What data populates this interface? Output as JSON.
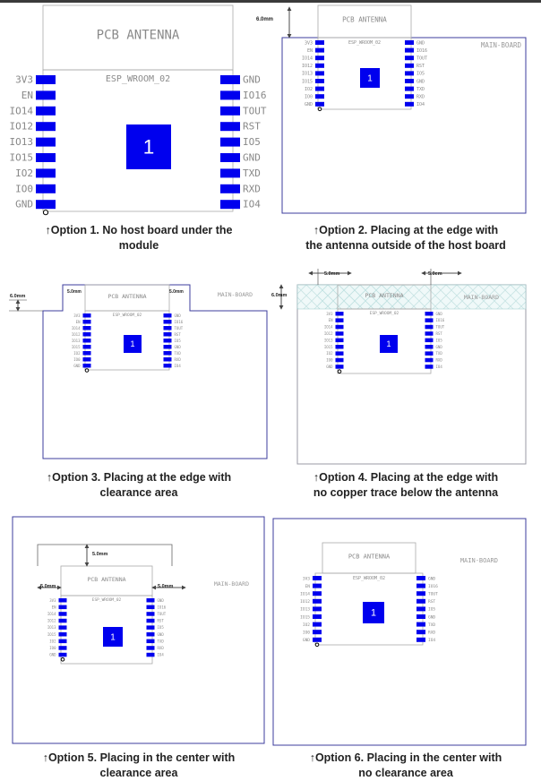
{
  "module": {
    "antenna_label": "PCB ANTENNA",
    "module_label": "ESP_WROOM_02",
    "pad_label": "1",
    "main_board_label": "MAIN-BOARD",
    "left_pins": [
      "3V3",
      "EN",
      "IO14",
      "IO12",
      "IO13",
      "IO15",
      "IO2",
      "IO0",
      "GND"
    ],
    "right_pins": [
      "GND",
      "IO16",
      "TOUT",
      "RST",
      "IO5",
      "GND",
      "TXD",
      "RXD",
      "IO4"
    ],
    "pin_color": "#0000ee",
    "board_border_color": "#3c3c9c"
  },
  "dimensions": {
    "six": "6.0mm",
    "five": "5.0mm",
    "five_alt": "5.0em"
  },
  "captions": [
    {
      "arrow": "↑",
      "line1": "Option 1. No host board under the",
      "line2": "module"
    },
    {
      "arrow": "↑",
      "line1": "Option 2. Placing at the edge with",
      "line2": "the antenna outside of the host board"
    },
    {
      "arrow": "↑",
      "line1": "Option 3. Placing at the edge with",
      "line2": "clearance area"
    },
    {
      "arrow": "↑",
      "line1": "Option 4. Placing at the edge with",
      "line2": "no copper trace below the antenna"
    },
    {
      "arrow": "↑",
      "line1": "Option 5. Placing in the center with",
      "line2": "clearance area"
    },
    {
      "arrow": "↑",
      "line1": "Option 6. Placing in the center with",
      "line2": "no clearance area"
    }
  ]
}
